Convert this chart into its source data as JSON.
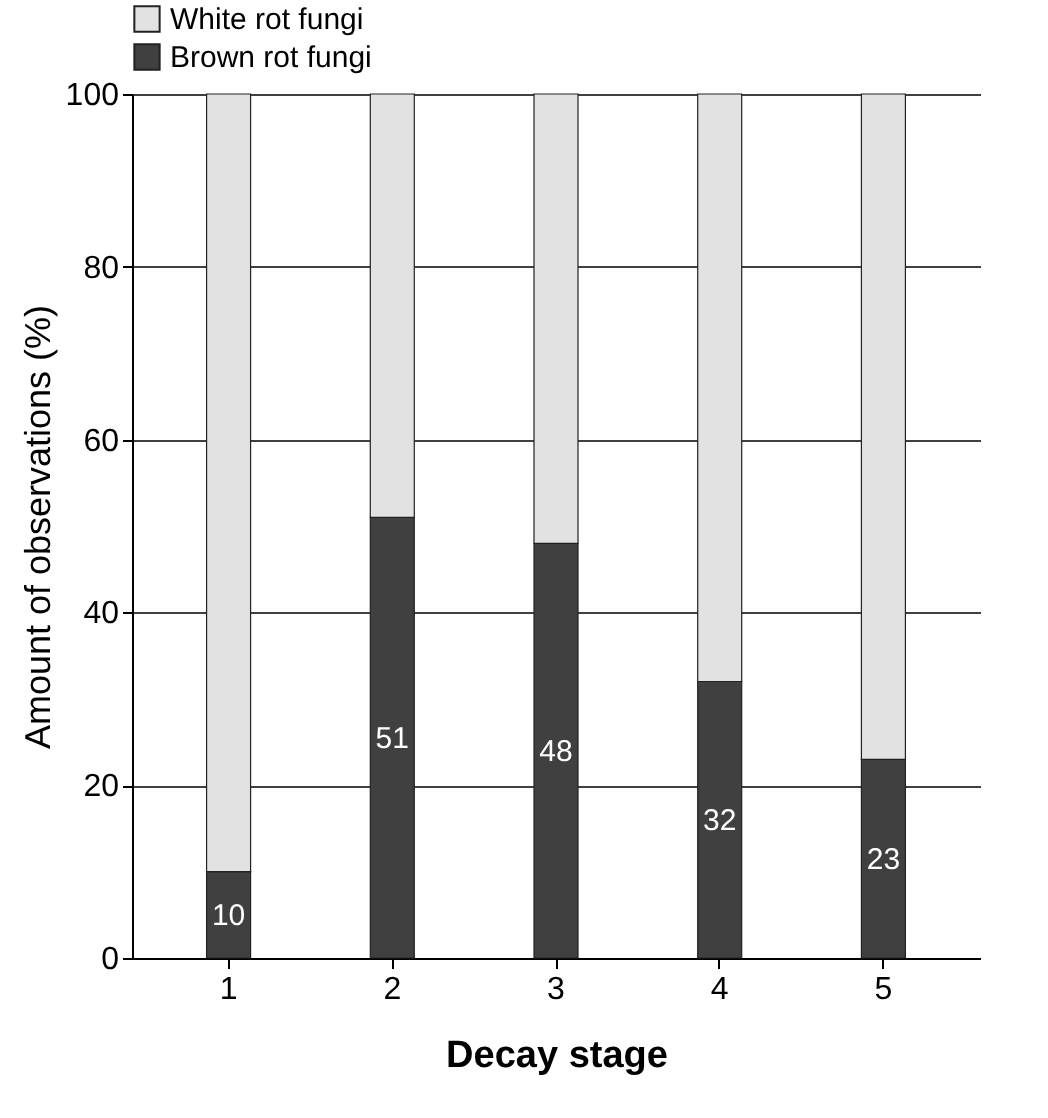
{
  "chart_data": {
    "type": "bar",
    "stacked": true,
    "xlabel": "Decay stage",
    "ylabel": "Amount of observations (%)",
    "categories": [
      "1",
      "2",
      "3",
      "4",
      "5"
    ],
    "series": [
      {
        "name": "Brown rot fungi",
        "color": "#404040",
        "values": [
          10,
          51,
          48,
          32,
          23
        ],
        "value_labels": [
          "10",
          "51",
          "48",
          "32",
          "23"
        ]
      },
      {
        "name": "White rot fungi",
        "color": "#e2e2e2",
        "values": [
          90,
          49,
          52,
          68,
          77
        ]
      }
    ],
    "ylim": [
      0,
      100
    ],
    "yticks": [
      0,
      20,
      40,
      60,
      80,
      100
    ],
    "grid": "y",
    "legend": "top"
  }
}
